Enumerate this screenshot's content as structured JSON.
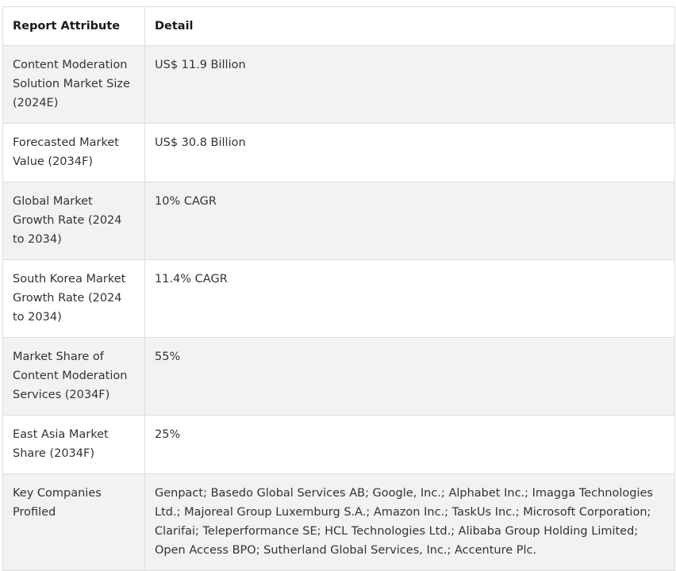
{
  "table": {
    "headers": [
      "Report Attribute",
      "Detail"
    ],
    "rows": [
      {
        "attribute": "Content Moderation Solution Market Size (2024E)",
        "detail": "US$ 11.9 Billion"
      },
      {
        "attribute": "Forecasted Market Value (2034F)",
        "detail": "US$ 30.8 Billion"
      },
      {
        "attribute": "Global Market Growth Rate (2024 to 2034)",
        "detail": "10% CAGR"
      },
      {
        "attribute": "South Korea Market Growth Rate (2024 to 2034)",
        "detail": "11.4% CAGR"
      },
      {
        "attribute": "Market Share of Content Moderation Services (2034F)",
        "detail": "55%"
      },
      {
        "attribute": "East Asia Market Share (2034F)",
        "detail": "25%"
      },
      {
        "attribute": "Key Companies Profiled",
        "detail": "Genpact; Basedo Global Services AB; Google, Inc.; Alphabet Inc.; Imagga Technologies Ltd.; Majoreal Group Luxemburg S.A.; Amazon Inc.; TaskUs Inc.; Microsoft Corporation; Clarifai; Teleperformance SE; HCL Technologies Ltd.; Alibaba Group Holding Limited; Open Access BPO; Sutherland Global Services, Inc.; Accenture Plc."
      }
    ]
  }
}
